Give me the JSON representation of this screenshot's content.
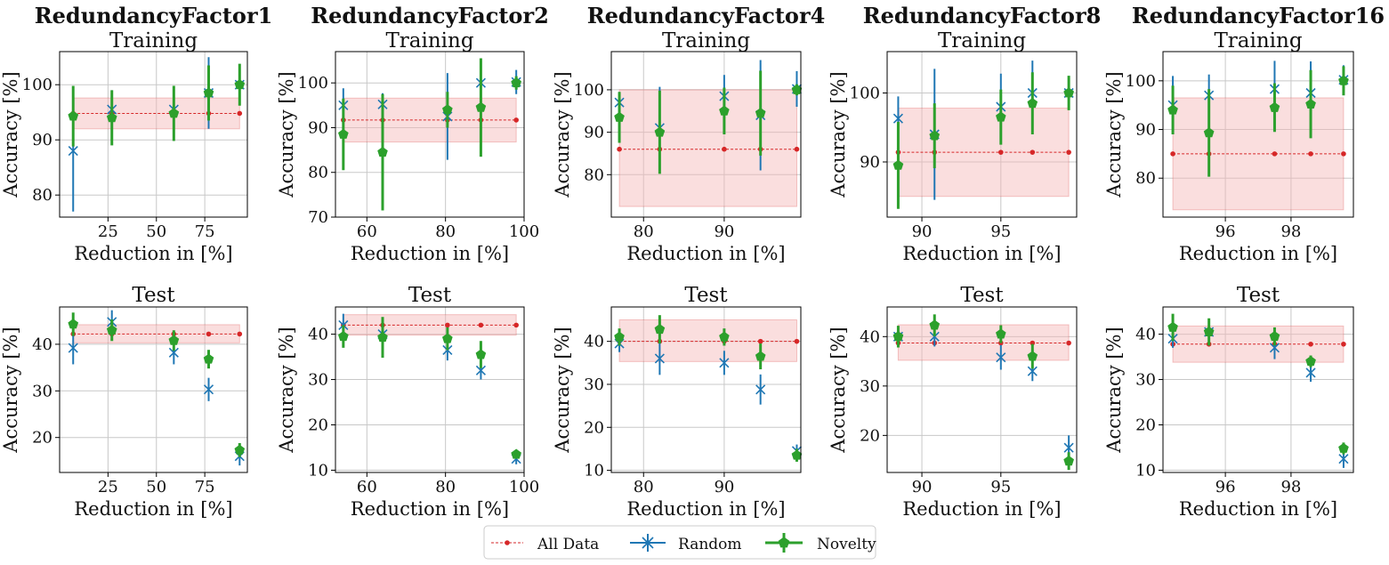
{
  "legend": {
    "all_data": "All Data",
    "random": "Random",
    "novelty": "Novelty"
  },
  "colors": {
    "all_data": "#d62728",
    "band": "#f4b6b6",
    "random": "#1f77b4",
    "novelty": "#2ca02c",
    "grid": "#c8c8c8"
  },
  "chart_data": [
    {
      "type": "scatter",
      "column_title": "RedundancyFactor1",
      "title": "Training",
      "xlabel": "Reduction in [%]",
      "ylabel": "Accuracy [%]",
      "xlim": [
        0,
        97
      ],
      "ylim": [
        76,
        106
      ],
      "xticks": [
        25,
        50,
        75
      ],
      "yticks": [
        80,
        90,
        100
      ],
      "grid": true,
      "x": [
        7,
        27,
        59,
        77,
        93
      ],
      "all_data": {
        "values": [
          94.8,
          94.8,
          94.8,
          94.8,
          94.8
        ],
        "band": [
          92,
          97.6
        ]
      },
      "series": [
        {
          "name": "Random",
          "values": [
            88,
            95.5,
            95.5,
            98.5,
            100
          ],
          "errors": [
            11,
            3.5,
            3,
            6.5,
            3.5
          ]
        },
        {
          "name": "Novelty",
          "values": [
            94.3,
            94,
            94.8,
            98.5,
            100
          ],
          "errors": [
            5.5,
            5,
            5,
            5,
            3.8
          ]
        }
      ]
    },
    {
      "type": "scatter",
      "column_title": "RedundancyFactor2",
      "title": "Training",
      "xlabel": "Reduction in [%]",
      "ylabel": "Accuracy [%]",
      "xlim": [
        52,
        100
      ],
      "ylim": [
        70,
        107
      ],
      "xticks": [
        60,
        80,
        100
      ],
      "yticks": [
        70,
        80,
        90,
        100
      ],
      "grid": true,
      "x": [
        54,
        64,
        80.5,
        89,
        98
      ],
      "all_data": {
        "values": [
          91.7,
          91.7,
          91.7,
          91.7,
          91.7
        ],
        "band": [
          86.8,
          96.6
        ]
      },
      "series": [
        {
          "name": "Random",
          "values": [
            95,
            95.2,
            92.5,
            100,
            100.2
          ],
          "errors": [
            3.8,
            2.5,
            9.7,
            0,
            2.7
          ]
        },
        {
          "name": "Novelty",
          "values": [
            88.5,
            84.5,
            94,
            94.5,
            100
          ],
          "errors": [
            8,
            13,
            4,
            11,
            1.5
          ]
        }
      ]
    },
    {
      "type": "scatter",
      "column_title": "RedundancyFactor4",
      "title": "Training",
      "xlabel": "Reduction in [%]",
      "ylabel": "Accuracy [%]",
      "xlim": [
        76,
        99.5
      ],
      "ylim": [
        70,
        109
      ],
      "xticks": [
        80,
        90
      ],
      "yticks": [
        80,
        90,
        100
      ],
      "grid": true,
      "x": [
        77,
        82,
        90,
        94.5,
        99
      ],
      "all_data": {
        "values": [
          86,
          86,
          86,
          86,
          86
        ],
        "band": [
          72.5,
          100
        ]
      },
      "series": [
        {
          "name": "Random",
          "values": [
            97,
            91,
            98.5,
            94,
            100.2
          ],
          "errors": [
            2.5,
            9.7,
            5,
            13,
            4.2
          ]
        },
        {
          "name": "Novelty",
          "values": [
            93.5,
            90,
            95,
            94.5,
            100
          ],
          "errors": [
            6,
            9.8,
            5.5,
            10,
            1.3
          ]
        }
      ]
    },
    {
      "type": "scatter",
      "column_title": "RedundancyFactor8",
      "title": "Training",
      "xlabel": "Reduction in [%]",
      "ylabel": "Accuracy [%]",
      "xlim": [
        87.8,
        99.8
      ],
      "ylim": [
        82,
        106
      ],
      "xticks": [
        90,
        95
      ],
      "yticks": [
        90,
        100
      ],
      "grid": true,
      "x": [
        88.5,
        90.8,
        95,
        97,
        99.3
      ],
      "all_data": {
        "values": [
          91.4,
          91.4,
          91.4,
          91.4,
          91.4
        ],
        "band": [
          85,
          97.8
        ]
      },
      "series": [
        {
          "name": "Random",
          "values": [
            96.3,
            94,
            98,
            100,
            100
          ],
          "errors": [
            3.2,
            9.5,
            4.8,
            4.7,
            0
          ]
        },
        {
          "name": "Novelty",
          "values": [
            89.5,
            93.8,
            96.5,
            98.5,
            100
          ],
          "errors": [
            6.3,
            4.7,
            4,
            4.5,
            2.5
          ]
        }
      ]
    },
    {
      "type": "scatter",
      "column_title": "RedundancyFactor16",
      "title": "Training",
      "xlabel": "Reduction in [%]",
      "ylabel": "Accuracy [%]",
      "xlim": [
        94.1,
        99.9
      ],
      "ylim": [
        72,
        106
      ],
      "xticks": [
        96,
        98
      ],
      "yticks": [
        80,
        90,
        100
      ],
      "grid": true,
      "x": [
        94.4,
        95.5,
        97.5,
        98.6,
        99.6
      ],
      "all_data": {
        "values": [
          85,
          85,
          85,
          85,
          85
        ],
        "band": [
          73.5,
          96.5
        ]
      },
      "series": [
        {
          "name": "Random",
          "values": [
            95,
            97,
            98.3,
            97.5,
            100.2
          ],
          "errors": [
            6,
            4.3,
            5.8,
            6.5,
            3
          ]
        },
        {
          "name": "Novelty",
          "values": [
            94,
            89.3,
            94.5,
            95.2,
            100
          ],
          "errors": [
            5,
            9,
            5,
            7,
            3
          ]
        }
      ]
    },
    {
      "type": "scatter",
      "column_title": "",
      "title": "Test",
      "xlabel": "Reduction in [%]",
      "ylabel": "Accuracy [%]",
      "xlim": [
        0,
        97
      ],
      "ylim": [
        12.5,
        48
      ],
      "xticks": [
        25,
        50,
        75
      ],
      "yticks": [
        20,
        30,
        40
      ],
      "grid": true,
      "x": [
        7,
        27,
        59,
        77,
        93
      ],
      "all_data": {
        "values": [
          42.2,
          42.2,
          42.2,
          42.2,
          42.2
        ],
        "band": [
          40.3,
          44.2
        ]
      },
      "series": [
        {
          "name": "Random",
          "values": [
            39.2,
            44.8,
            38.2,
            30.3,
            16
          ],
          "errors": [
            3.5,
            2.5,
            2.5,
            2.5,
            2
          ]
        },
        {
          "name": "Novelty",
          "values": [
            44.3,
            43,
            40.8,
            36.8,
            17.3
          ],
          "errors": [
            2.5,
            2.3,
            2.2,
            2,
            1.5
          ]
        }
      ]
    },
    {
      "type": "scatter",
      "column_title": "",
      "title": "Test",
      "xlabel": "Reduction in [%]",
      "ylabel": "Accuracy [%]",
      "xlim": [
        52,
        100
      ],
      "ylim": [
        9.5,
        46
      ],
      "xticks": [
        60,
        80,
        100
      ],
      "yticks": [
        10,
        20,
        30,
        40
      ],
      "grid": true,
      "x": [
        54,
        64,
        80.5,
        89,
        98
      ],
      "all_data": {
        "values": [
          42,
          42,
          42,
          42,
          42
        ],
        "band": [
          39.8,
          44.3
        ]
      },
      "series": [
        {
          "name": "Random",
          "values": [
            42,
            40,
            36.5,
            32,
            12.5
          ],
          "errors": [
            2.5,
            2,
            2.3,
            2,
            1.2
          ]
        },
        {
          "name": "Novelty",
          "values": [
            39.5,
            39.3,
            39,
            35.5,
            13.5
          ],
          "errors": [
            2.5,
            4.5,
            2.5,
            3,
            0.8
          ]
        }
      ]
    },
    {
      "type": "scatter",
      "column_title": "",
      "title": "Test",
      "xlabel": "Reduction in [%]",
      "ylabel": "Accuracy [%]",
      "xlim": [
        76,
        99.5
      ],
      "ylim": [
        9.5,
        48
      ],
      "xticks": [
        80,
        90
      ],
      "yticks": [
        10,
        20,
        30,
        40
      ],
      "grid": true,
      "x": [
        77,
        82,
        90,
        94.5,
        99
      ],
      "all_data": {
        "values": [
          40,
          40,
          40,
          40,
          40
        ],
        "band": [
          35.3,
          45
        ]
      },
      "series": [
        {
          "name": "Random",
          "values": [
            39.5,
            36,
            35,
            28.8,
            14.5
          ],
          "errors": [
            2,
            3.8,
            2.8,
            3.5,
            1.5
          ]
        },
        {
          "name": "Novelty",
          "values": [
            41,
            42.8,
            41,
            36.5,
            13.5
          ],
          "errors": [
            2,
            3.3,
            2,
            3,
            1.5
          ]
        }
      ]
    },
    {
      "type": "scatter",
      "column_title": "",
      "title": "Test",
      "xlabel": "Reduction in [%]",
      "ylabel": "Accuracy [%]",
      "xlim": [
        87.8,
        99.8
      ],
      "ylim": [
        12.5,
        46
      ],
      "xticks": [
        90,
        95
      ],
      "yticks": [
        20,
        30,
        40
      ],
      "grid": true,
      "x": [
        88.5,
        90.8,
        95,
        97,
        99.3
      ],
      "all_data": {
        "values": [
          38.7,
          38.7,
          38.7,
          38.7,
          38.7
        ],
        "band": [
          35.2,
          42.4
        ]
      },
      "series": [
        {
          "name": "Random",
          "values": [
            40,
            40,
            35.8,
            33,
            17.5
          ],
          "errors": [
            2,
            2,
            2.5,
            2,
            2.5
          ]
        },
        {
          "name": "Novelty",
          "values": [
            40,
            42.3,
            40.5,
            36,
            14.8
          ],
          "errors": [
            2.2,
            2.2,
            1.8,
            2.5,
            1.8
          ]
        }
      ]
    },
    {
      "type": "scatter",
      "column_title": "",
      "title": "Test",
      "xlabel": "Reduction in [%]",
      "ylabel": "Accuracy [%]",
      "xlim": [
        94.1,
        99.9
      ],
      "ylim": [
        9.5,
        46
      ],
      "xticks": [
        96,
        98
      ],
      "yticks": [
        10,
        20,
        30,
        40
      ],
      "grid": true,
      "x": [
        94.4,
        95.5,
        97.5,
        98.6,
        99.6
      ],
      "all_data": {
        "values": [
          37.8,
          37.8,
          37.8,
          37.8,
          37.8
        ],
        "band": [
          33.8,
          41.8
        ]
      },
      "series": [
        {
          "name": "Random",
          "values": [
            39,
            40.5,
            37,
            31.5,
            12.5
          ],
          "errors": [
            2,
            2.5,
            2.5,
            2,
            2
          ]
        },
        {
          "name": "Novelty",
          "values": [
            41.5,
            40.5,
            39.5,
            34,
            14.8
          ],
          "errors": [
            3,
            3,
            2,
            1.3,
            1.3
          ]
        }
      ]
    }
  ]
}
